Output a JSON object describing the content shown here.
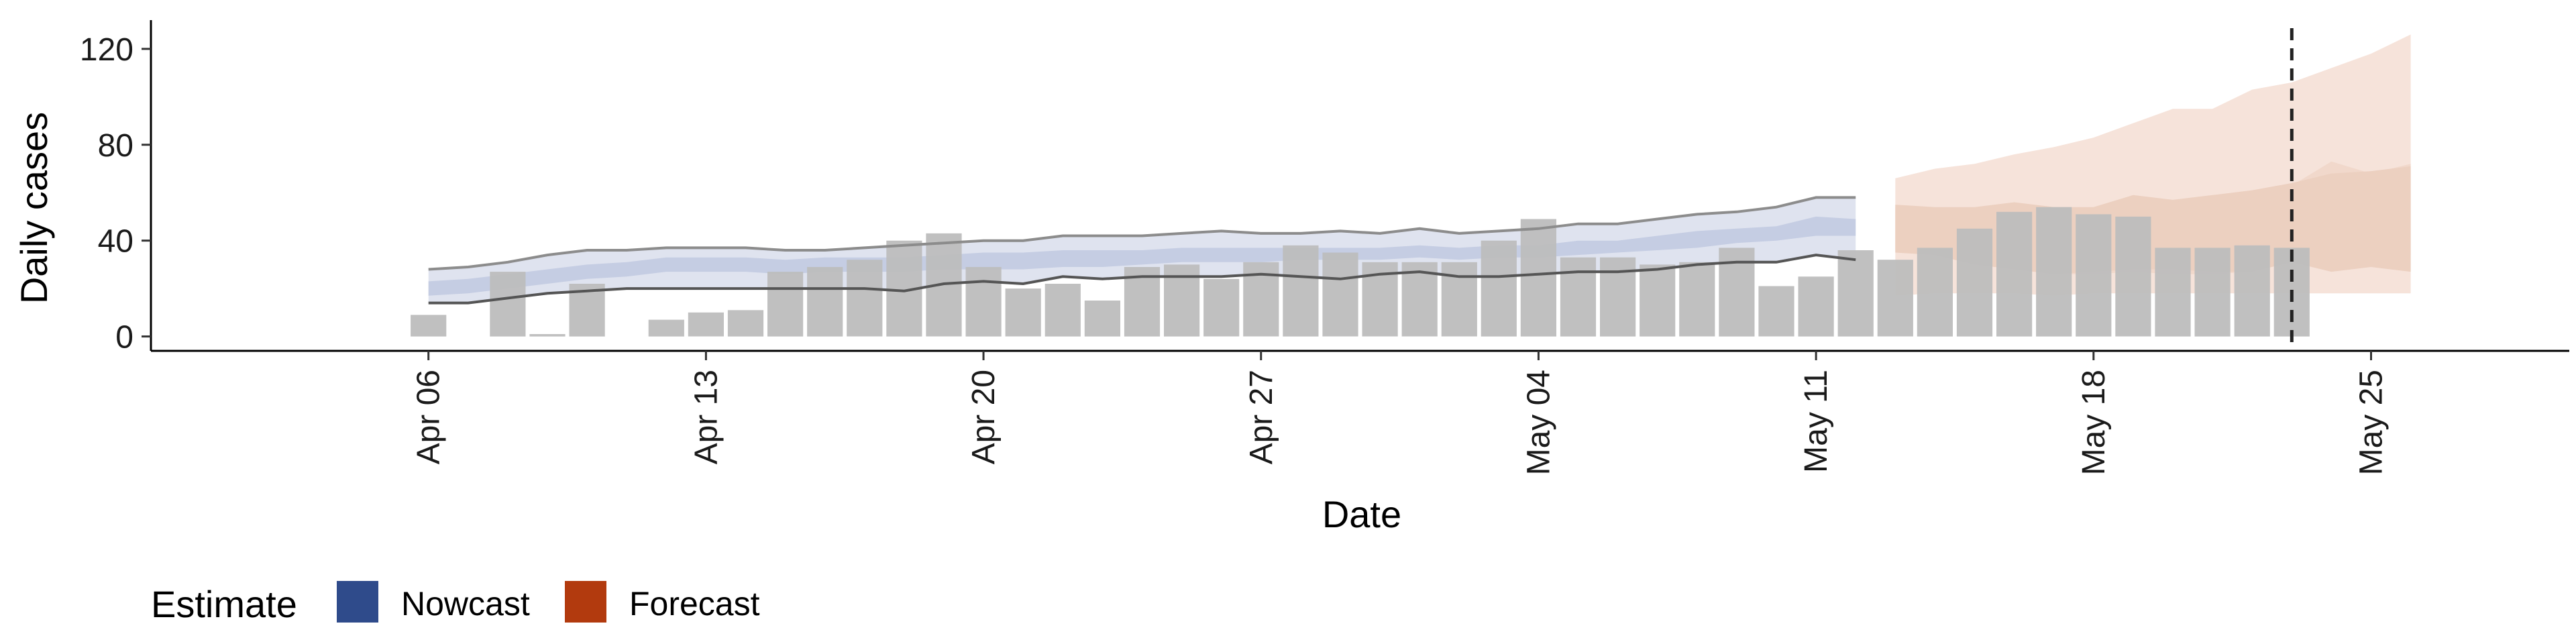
{
  "chart_data": {
    "type": "bar",
    "xlabel": "Date",
    "ylabel": "Daily cases",
    "ylim": [
      -6,
      132
    ],
    "yticks": [
      0,
      40,
      80,
      120
    ],
    "xrange": [
      "2020-03-30",
      "2020-05-30"
    ],
    "xticks": [
      {
        "date": "2020-04-06",
        "label": "Apr 06"
      },
      {
        "date": "2020-04-13",
        "label": "Apr 13"
      },
      {
        "date": "2020-04-20",
        "label": "Apr 20"
      },
      {
        "date": "2020-04-27",
        "label": "Apr 27"
      },
      {
        "date": "2020-05-04",
        "label": "May 04"
      },
      {
        "date": "2020-05-11",
        "label": "May 11"
      },
      {
        "date": "2020-05-18",
        "label": "May 18"
      },
      {
        "date": "2020-05-25",
        "label": "May 25"
      }
    ],
    "grid": false,
    "vline_date": "2020-05-23",
    "bars": {
      "dates": [
        "2020-04-06",
        "2020-04-07",
        "2020-04-08",
        "2020-04-09",
        "2020-04-10",
        "2020-04-11",
        "2020-04-12",
        "2020-04-13",
        "2020-04-14",
        "2020-04-15",
        "2020-04-16",
        "2020-04-17",
        "2020-04-18",
        "2020-04-19",
        "2020-04-20",
        "2020-04-21",
        "2020-04-22",
        "2020-04-23",
        "2020-04-24",
        "2020-04-25",
        "2020-04-26",
        "2020-04-27",
        "2020-04-28",
        "2020-04-29",
        "2020-04-30",
        "2020-05-01",
        "2020-05-02",
        "2020-05-03",
        "2020-05-04",
        "2020-05-05",
        "2020-05-06",
        "2020-05-07",
        "2020-05-08",
        "2020-05-09",
        "2020-05-10",
        "2020-05-11",
        "2020-05-12",
        "2020-05-13",
        "2020-05-14",
        "2020-05-15",
        "2020-05-16",
        "2020-05-17",
        "2020-05-18",
        "2020-05-19",
        "2020-05-20",
        "2020-05-21",
        "2020-05-22",
        "2020-05-23"
      ],
      "values": [
        9,
        0,
        27,
        1,
        22,
        0,
        7,
        10,
        11,
        27,
        29,
        32,
        40,
        43,
        29,
        20,
        22,
        15,
        29,
        30,
        24,
        31,
        38,
        35,
        31,
        31,
        31,
        40,
        49,
        33,
        33,
        30,
        31,
        37,
        21,
        25,
        36,
        32,
        37,
        45,
        52,
        54,
        51,
        50,
        37,
        37,
        38,
        37
      ]
    },
    "bands": {
      "nowcast": {
        "dates": [
          "2020-04-06",
          "2020-04-07",
          "2020-04-08",
          "2020-04-09",
          "2020-04-10",
          "2020-04-11",
          "2020-04-12",
          "2020-04-13",
          "2020-04-14",
          "2020-04-15",
          "2020-04-16",
          "2020-04-17",
          "2020-04-18",
          "2020-04-19",
          "2020-04-20",
          "2020-04-21",
          "2020-04-22",
          "2020-04-23",
          "2020-04-24",
          "2020-04-25",
          "2020-04-26",
          "2020-04-27",
          "2020-04-28",
          "2020-04-29",
          "2020-04-30",
          "2020-05-01",
          "2020-05-02",
          "2020-05-03",
          "2020-05-04",
          "2020-05-05",
          "2020-05-06",
          "2020-05-07",
          "2020-05-08",
          "2020-05-09",
          "2020-05-10",
          "2020-05-11",
          "2020-05-12"
        ],
        "outer_lo": [
          14,
          14,
          16,
          18,
          19,
          20,
          20,
          20,
          20,
          20,
          20,
          20,
          19,
          22,
          23,
          22,
          25,
          24,
          25,
          25,
          25,
          26,
          25,
          24,
          26,
          27,
          25,
          25,
          26,
          27,
          27,
          28,
          30,
          31,
          31,
          34,
          32
        ],
        "outer_hi": [
          28,
          29,
          31,
          34,
          36,
          36,
          37,
          37,
          37,
          36,
          36,
          37,
          38,
          39,
          40,
          40,
          42,
          42,
          42,
          43,
          44,
          43,
          43,
          44,
          43,
          45,
          43,
          44,
          45,
          47,
          47,
          49,
          51,
          52,
          54,
          58,
          58
        ],
        "inner_lo": [
          17,
          18,
          20,
          22,
          24,
          25,
          27,
          27,
          27,
          26,
          27,
          27,
          27,
          28,
          28,
          28,
          29,
          29,
          30,
          31,
          31,
          31,
          32,
          32,
          32,
          33,
          32,
          33,
          33,
          34,
          35,
          36,
          37,
          39,
          40,
          42,
          42
        ],
        "inner_hi": [
          23,
          24,
          26,
          28,
          30,
          31,
          33,
          33,
          33,
          32,
          33,
          33,
          33,
          34,
          35,
          35,
          36,
          36,
          36,
          37,
          37,
          37,
          37,
          37,
          37,
          38,
          37,
          38,
          38,
          40,
          40,
          42,
          44,
          45,
          46,
          50,
          49
        ]
      },
      "forecast": {
        "dates": [
          "2020-05-13",
          "2020-05-14",
          "2020-05-15",
          "2020-05-16",
          "2020-05-17",
          "2020-05-18",
          "2020-05-19",
          "2020-05-20",
          "2020-05-21",
          "2020-05-22",
          "2020-05-23",
          "2020-05-24",
          "2020-05-25",
          "2020-05-26"
        ],
        "outer_lo": [
          17,
          18,
          18,
          18,
          17,
          18,
          18,
          18,
          18,
          18,
          18,
          18,
          18,
          18
        ],
        "outer_hi": [
          66,
          70,
          72,
          76,
          79,
          83,
          89,
          95,
          95,
          103,
          106,
          112,
          118,
          126
        ],
        "inner_lo": [
          35,
          34,
          30,
          28,
          26,
          27,
          28,
          28,
          27,
          27,
          31,
          27,
          29,
          27
        ],
        "inner_hi": [
          55,
          54,
          54,
          56,
          54,
          54,
          59,
          57,
          59,
          61,
          64,
          68,
          69,
          71
        ],
        "mid_lo": [
          36,
          34,
          31,
          28,
          26,
          26,
          27,
          26,
          26,
          27,
          36,
          42,
          35,
          34
        ],
        "mid_hi": [
          54,
          53,
          53,
          55,
          53,
          53,
          57,
          56,
          58,
          59,
          63,
          73,
          68,
          72
        ]
      }
    },
    "legend": {
      "title": "Estimate",
      "position": "bottom-left",
      "items": [
        {
          "label": "Nowcast",
          "color": "#2f4b8b"
        },
        {
          "label": "Forecast",
          "color": "#b23a0e"
        }
      ]
    },
    "colors": {
      "bar": "#bdbdbd",
      "nowcast_outer": "#dfe3ef",
      "nowcast_inner": "#c5cde3",
      "forecast_outer": "#f6e3da",
      "forecast_inner": "#ecd0c0",
      "line": "#808080",
      "vline": "#222222"
    }
  }
}
